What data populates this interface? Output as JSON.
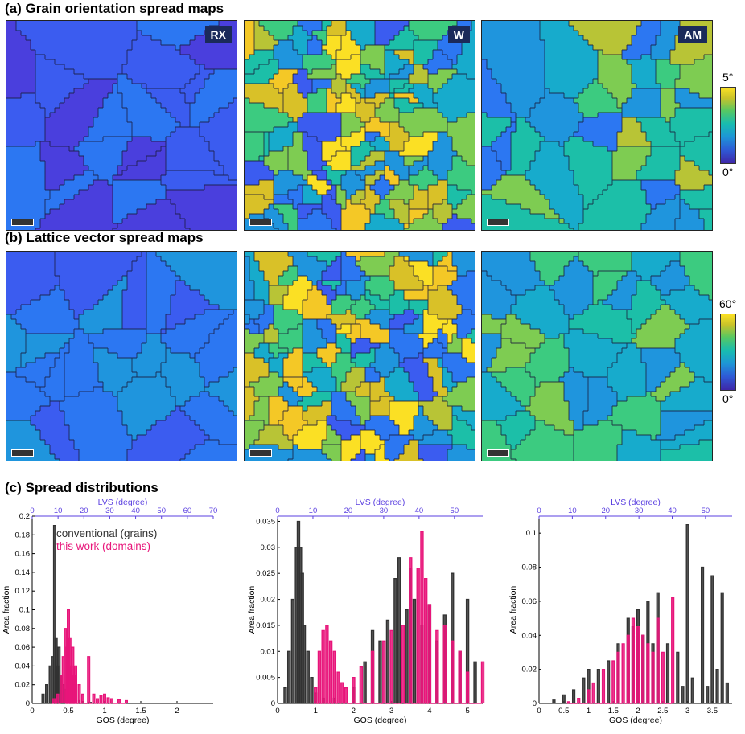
{
  "sections": {
    "a_title": "(a) Grain orientation spread maps",
    "b_title": "(b) Lattice vector spread maps",
    "c_title": "(c) Spread distributions"
  },
  "maps": {
    "labels": [
      "RX",
      "W",
      "AM"
    ],
    "colorbar_a": {
      "max": "5°",
      "min": "0°"
    },
    "colorbar_b": {
      "max": "60°",
      "min": "0°"
    },
    "palette": [
      "#3e26a8",
      "#4a3fdd",
      "#3b5cf0",
      "#2c77f2",
      "#1f95dd",
      "#17abcc",
      "#1cbfa8",
      "#3ccb80",
      "#7ecc52",
      "#b8c436",
      "#d9c128",
      "#f4c826",
      "#fbe024"
    ]
  },
  "chart_data": [
    {
      "type": "histogram",
      "xlabel": "GOS (degree)",
      "ylabel": "Area fraction",
      "top_xlabel": "LVS (degree)",
      "xticks": [
        "0",
        "0.5",
        "1",
        "1.5",
        "2"
      ],
      "xlim": [
        0,
        2.5
      ],
      "top_xticks": [
        "0",
        "10",
        "20",
        "30",
        "40",
        "50",
        "60",
        "70"
      ],
      "top_xlim": [
        0,
        70
      ],
      "yticks": [
        "0",
        "0.02",
        "0.04",
        "0.06",
        "0.08",
        "0.1",
        "0.12",
        "0.14",
        "0.16",
        "0.18",
        "0.2"
      ],
      "ylim": [
        0,
        0.2
      ],
      "legend": [
        "conventional (grains)",
        "this work (domains)"
      ],
      "legend_colors": [
        "#333333",
        "#e8157a"
      ],
      "series": [
        {
          "name": "conventional (grains)",
          "color": "#333333",
          "x": [
            0.15,
            0.2,
            0.25,
            0.28,
            0.31,
            0.33,
            0.35,
            0.37,
            0.4,
            0.43,
            0.46,
            0.5,
            0.55,
            0.6,
            0.65,
            0.7,
            0.8
          ],
          "y": [
            0.01,
            0.02,
            0.04,
            0.05,
            0.19,
            0.07,
            0.04,
            0.06,
            0.03,
            0.02,
            0.015,
            0.01,
            0.008,
            0.005,
            0.003,
            0.002,
            0.001
          ]
        },
        {
          "name": "this work (domains)",
          "color": "#e8157a",
          "x": [
            0.3,
            0.35,
            0.4,
            0.43,
            0.46,
            0.48,
            0.5,
            0.52,
            0.54,
            0.56,
            0.58,
            0.6,
            0.65,
            0.7,
            0.78,
            0.85,
            0.9,
            0.95,
            1.0,
            1.05,
            1.1,
            1.2,
            1.3
          ],
          "y": [
            0.005,
            0.01,
            0.03,
            0.05,
            0.08,
            0.06,
            0.1,
            0.07,
            0.04,
            0.06,
            0.03,
            0.04,
            0.02,
            0.01,
            0.05,
            0.01,
            0.005,
            0.008,
            0.01,
            0.006,
            0.005,
            0.004,
            0.003
          ]
        }
      ]
    },
    {
      "type": "histogram",
      "xlabel": "GOS (degree)",
      "ylabel": "Area fraction",
      "top_xlabel": "LVS (degree)",
      "xticks": [
        "0",
        "1",
        "2",
        "3",
        "4",
        "5"
      ],
      "xlim": [
        0,
        5.4
      ],
      "top_xticks": [
        "0",
        "10",
        "20",
        "30",
        "40",
        "50"
      ],
      "top_xlim": [
        0,
        58
      ],
      "yticks": [
        "0",
        "0.005",
        "0.01",
        "0.015",
        "0.02",
        "0.025",
        "0.03",
        "0.035"
      ],
      "ylim": [
        0,
        0.036
      ],
      "series": [
        {
          "name": "conventional (grains)",
          "color": "#333333",
          "x": [
            0.2,
            0.3,
            0.4,
            0.5,
            0.55,
            0.6,
            0.65,
            0.7,
            0.8,
            0.9,
            1.0,
            1.2,
            1.5,
            2.0,
            2.3,
            2.5,
            2.7,
            2.9,
            3.1,
            3.2,
            3.4,
            3.5,
            3.6,
            3.8,
            4.0,
            4.2,
            4.4,
            4.6,
            4.8,
            5.0,
            5.2
          ],
          "y": [
            0.003,
            0.01,
            0.02,
            0.03,
            0.035,
            0.03,
            0.025,
            0.015,
            0.01,
            0.005,
            0.002,
            0.001,
            0.001,
            0.003,
            0.008,
            0.014,
            0.012,
            0.016,
            0.024,
            0.028,
            0.018,
            0.026,
            0.02,
            0.015,
            0.019,
            0.012,
            0.017,
            0.025,
            0.01,
            0.02,
            0.008
          ]
        },
        {
          "name": "this work (domains)",
          "color": "#e8157a",
          "x": [
            1.0,
            1.1,
            1.2,
            1.3,
            1.4,
            1.5,
            1.6,
            1.7,
            1.8,
            2.0,
            2.2,
            2.5,
            2.8,
            3.0,
            3.3,
            3.5,
            3.7,
            3.8,
            3.9,
            4.0,
            4.2,
            4.4,
            4.6,
            4.8,
            5.0,
            5.4
          ],
          "y": [
            0.003,
            0.01,
            0.014,
            0.015,
            0.012,
            0.01,
            0.006,
            0.004,
            0.003,
            0.005,
            0.007,
            0.01,
            0.012,
            0.014,
            0.015,
            0.028,
            0.026,
            0.033,
            0.024,
            0.019,
            0.014,
            0.015,
            0.012,
            0.01,
            0.006,
            0.008
          ]
        }
      ]
    },
    {
      "type": "histogram",
      "xlabel": "GOS (degree)",
      "ylabel": "Area fraction",
      "top_xlabel": "LVS (degree)",
      "xticks": [
        "0",
        "0.5",
        "1",
        "1.5",
        "2",
        "2.5",
        "3",
        "3.5"
      ],
      "xlim": [
        0,
        3.9
      ],
      "top_xticks": [
        "0",
        "10",
        "20",
        "30",
        "40",
        "50"
      ],
      "top_xlim": [
        0,
        58
      ],
      "yticks": [
        "0",
        "0.02",
        "0.04",
        "0.06",
        "0.08",
        "0.1"
      ],
      "ylim": [
        0,
        0.11
      ],
      "series": [
        {
          "name": "conventional (grains)",
          "color": "#333333",
          "x": [
            0.3,
            0.5,
            0.7,
            0.9,
            1.0,
            1.2,
            1.4,
            1.6,
            1.8,
            1.9,
            2.0,
            2.1,
            2.2,
            2.3,
            2.4,
            2.6,
            2.8,
            2.9,
            3.0,
            3.1,
            3.3,
            3.4,
            3.5,
            3.6,
            3.7,
            3.8
          ],
          "y": [
            0.002,
            0.005,
            0.008,
            0.015,
            0.02,
            0.02,
            0.025,
            0.035,
            0.05,
            0.045,
            0.055,
            0.04,
            0.06,
            0.035,
            0.065,
            0.035,
            0.03,
            0.01,
            0.105,
            0.015,
            0.08,
            0.01,
            0.075,
            0.02,
            0.065,
            0.012
          ]
        },
        {
          "name": "this work (domains)",
          "color": "#e8157a",
          "x": [
            0.6,
            0.8,
            1.0,
            1.1,
            1.3,
            1.5,
            1.6,
            1.7,
            1.8,
            1.9,
            2.0,
            2.1,
            2.2,
            2.3,
            2.4,
            2.5,
            2.7
          ],
          "y": [
            0.001,
            0.003,
            0.008,
            0.012,
            0.02,
            0.025,
            0.03,
            0.035,
            0.04,
            0.05,
            0.045,
            0.04,
            0.035,
            0.03,
            0.05,
            0.03,
            0.062
          ]
        }
      ]
    }
  ]
}
